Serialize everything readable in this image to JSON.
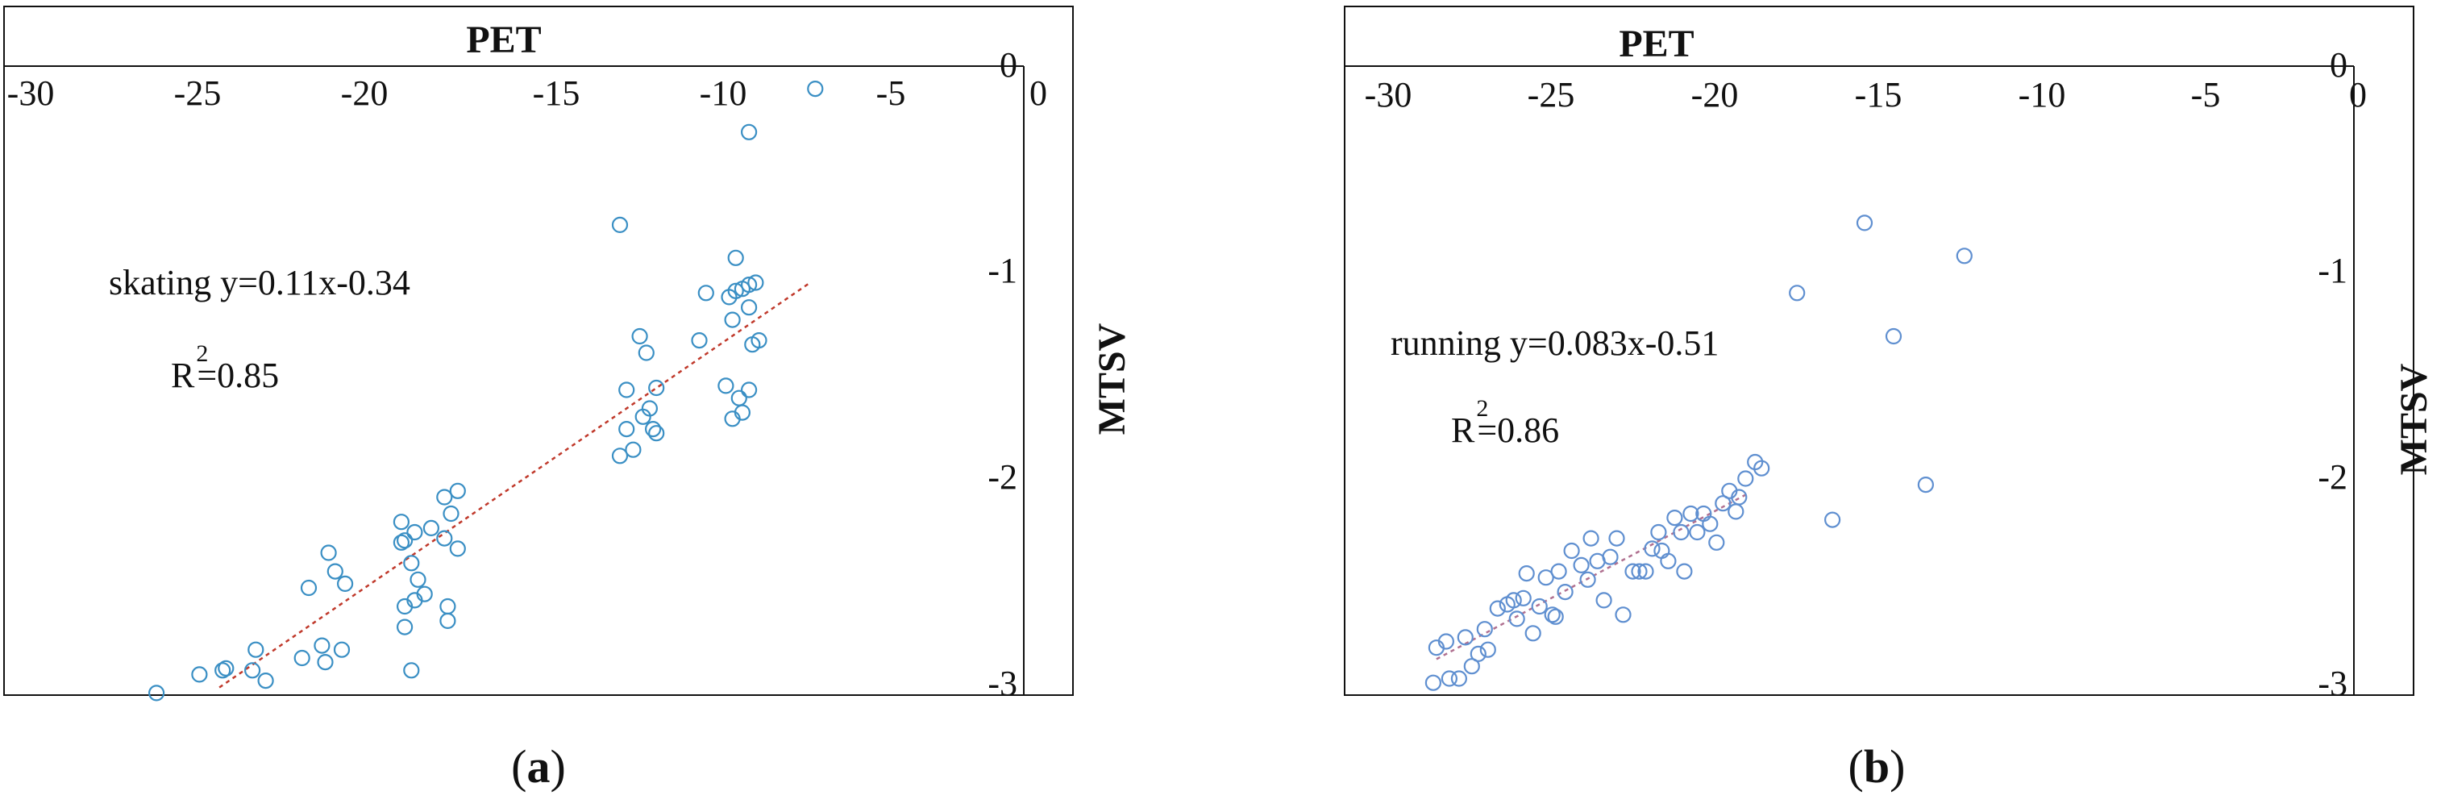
{
  "panels": [
    {
      "caption_open": "(",
      "caption_letter": "a",
      "caption_close": ")",
      "chart_data": {
        "type": "scatter",
        "xlabel": "PET",
        "ylabel": "MTSV",
        "xlim": [
          -30,
          0
        ],
        "ylim": [
          -3.05,
          0
        ],
        "x_ticks": [
          "-30",
          "-25",
          "-20",
          "-15",
          "-10",
          "-5",
          "0"
        ],
        "y_ticks": [
          "-3",
          "-2",
          "-1",
          "0"
        ],
        "annotation_line1": "skating  y=0.11x-0.34",
        "annotation_r": "R",
        "annotation_sup": "2",
        "annotation_r_value": "=0.85",
        "trend": {
          "slope": 0.11,
          "intercept": -0.34,
          "x_range": [
            -24.3,
            -6.5
          ]
        },
        "marker_color": "#3a8fc4",
        "trend_color": "#c0392b",
        "points": [
          [
            -26.2,
            -3.04
          ],
          [
            -24.9,
            -2.95
          ],
          [
            -24.2,
            -2.93
          ],
          [
            -24.1,
            -2.92
          ],
          [
            -23.3,
            -2.93
          ],
          [
            -23.2,
            -2.83
          ],
          [
            -22.9,
            -2.98
          ],
          [
            -21.8,
            -2.87
          ],
          [
            -21.6,
            -2.53
          ],
          [
            -21.2,
            -2.81
          ],
          [
            -21.1,
            -2.89
          ],
          [
            -21.0,
            -2.36
          ],
          [
            -20.8,
            -2.45
          ],
          [
            -20.6,
            -2.83
          ],
          [
            -20.5,
            -2.51
          ],
          [
            -18.8,
            -2.21
          ],
          [
            -18.8,
            -2.31
          ],
          [
            -18.7,
            -2.3
          ],
          [
            -18.7,
            -2.62
          ],
          [
            -18.7,
            -2.72
          ],
          [
            -18.5,
            -2.41
          ],
          [
            -18.5,
            -2.93
          ],
          [
            -18.4,
            -2.26
          ],
          [
            -18.4,
            -2.59
          ],
          [
            -18.3,
            -2.49
          ],
          [
            -18.1,
            -2.56
          ],
          [
            -17.9,
            -2.24
          ],
          [
            -17.5,
            -2.09
          ],
          [
            -17.5,
            -2.29
          ],
          [
            -17.4,
            -2.62
          ],
          [
            -17.4,
            -2.69
          ],
          [
            -17.3,
            -2.17
          ],
          [
            -17.1,
            -2.06
          ],
          [
            -17.1,
            -2.34
          ],
          [
            -12.2,
            -0.77
          ],
          [
            -12.2,
            -1.89
          ],
          [
            -12.0,
            -1.57
          ],
          [
            -12.0,
            -1.76
          ],
          [
            -11.8,
            -1.86
          ],
          [
            -11.6,
            -1.31
          ],
          [
            -11.5,
            -1.7
          ],
          [
            -11.4,
            -1.39
          ],
          [
            -11.3,
            -1.66
          ],
          [
            -11.2,
            -1.76
          ],
          [
            -11.1,
            -1.56
          ],
          [
            -11.1,
            -1.78
          ],
          [
            -9.8,
            -1.33
          ],
          [
            -9.6,
            -1.1
          ],
          [
            -9.0,
            -1.55
          ],
          [
            -8.9,
            -1.12
          ],
          [
            -8.8,
            -1.71
          ],
          [
            -8.8,
            -1.23
          ],
          [
            -8.7,
            -1.09
          ],
          [
            -8.7,
            -0.93
          ],
          [
            -8.6,
            -1.61
          ],
          [
            -8.5,
            -1.08
          ],
          [
            -8.5,
            -1.68
          ],
          [
            -8.3,
            -1.06
          ],
          [
            -8.3,
            -1.17
          ],
          [
            -8.3,
            -1.57
          ],
          [
            -8.2,
            -1.35
          ],
          [
            -8.1,
            -1.05
          ],
          [
            -8.0,
            -1.33
          ],
          [
            -8.3,
            -0.32
          ],
          [
            -6.3,
            -0.11
          ]
        ]
      }
    },
    {
      "caption_open": "(",
      "caption_letter": "b",
      "caption_close": ")",
      "chart_data": {
        "type": "scatter",
        "xlabel": "PET",
        "ylabel": "MTSV",
        "xlim": [
          -30,
          0
        ],
        "ylim": [
          -3.05,
          0
        ],
        "x_ticks": [
          "-30",
          "-25",
          "-20",
          "-15",
          "-10",
          "-5",
          "0"
        ],
        "y_ticks": [
          "-3",
          "-2",
          "-1",
          "0"
        ],
        "annotation_line1": "running  y=0.083x-0.51",
        "annotation_r": "R",
        "annotation_sup": "2",
        "annotation_r_value": "=0.86",
        "trend": {
          "slope": 0.083,
          "intercept": -0.51,
          "x_range": [
            -28.5,
            -18.8
          ]
        },
        "marker_color": "#5f8fd0",
        "trend_color": "#b07090",
        "points": [
          [
            -28.6,
            -2.99
          ],
          [
            -28.5,
            -2.82
          ],
          [
            -28.2,
            -2.79
          ],
          [
            -28.1,
            -2.97
          ],
          [
            -27.8,
            -2.97
          ],
          [
            -27.6,
            -2.77
          ],
          [
            -27.4,
            -2.91
          ],
          [
            -27.2,
            -2.85
          ],
          [
            -27.0,
            -2.73
          ],
          [
            -26.9,
            -2.83
          ],
          [
            -26.6,
            -2.63
          ],
          [
            -26.3,
            -2.61
          ],
          [
            -26.1,
            -2.59
          ],
          [
            -26.0,
            -2.68
          ],
          [
            -25.8,
            -2.58
          ],
          [
            -25.7,
            -2.46
          ],
          [
            -25.5,
            -2.75
          ],
          [
            -25.3,
            -2.62
          ],
          [
            -25.1,
            -2.48
          ],
          [
            -24.9,
            -2.66
          ],
          [
            -24.8,
            -2.67
          ],
          [
            -24.7,
            -2.45
          ],
          [
            -24.5,
            -2.55
          ],
          [
            -24.3,
            -2.35
          ],
          [
            -24.0,
            -2.42
          ],
          [
            -23.8,
            -2.49
          ],
          [
            -23.7,
            -2.29
          ],
          [
            -23.5,
            -2.4
          ],
          [
            -23.3,
            -2.59
          ],
          [
            -23.1,
            -2.38
          ],
          [
            -22.9,
            -2.29
          ],
          [
            -22.7,
            -2.66
          ],
          [
            -22.4,
            -2.45
          ],
          [
            -22.2,
            -2.45
          ],
          [
            -22.0,
            -2.45
          ],
          [
            -21.8,
            -2.34
          ],
          [
            -21.6,
            -2.26
          ],
          [
            -21.5,
            -2.35
          ],
          [
            -21.3,
            -2.4
          ],
          [
            -21.1,
            -2.19
          ],
          [
            -20.9,
            -2.26
          ],
          [
            -20.8,
            -2.45
          ],
          [
            -20.6,
            -2.17
          ],
          [
            -20.4,
            -2.26
          ],
          [
            -20.2,
            -2.17
          ],
          [
            -20.0,
            -2.22
          ],
          [
            -19.8,
            -2.31
          ],
          [
            -19.6,
            -2.12
          ],
          [
            -19.4,
            -2.06
          ],
          [
            -19.2,
            -2.16
          ],
          [
            -19.1,
            -2.09
          ],
          [
            -18.9,
            -2.0
          ],
          [
            -18.6,
            -1.92
          ],
          [
            -18.4,
            -1.95
          ],
          [
            -17.3,
            -1.1
          ],
          [
            -16.2,
            -2.2
          ],
          [
            -15.2,
            -0.76
          ],
          [
            -14.3,
            -1.31
          ],
          [
            -13.3,
            -2.03
          ],
          [
            -12.1,
            -0.92
          ]
        ]
      }
    }
  ]
}
